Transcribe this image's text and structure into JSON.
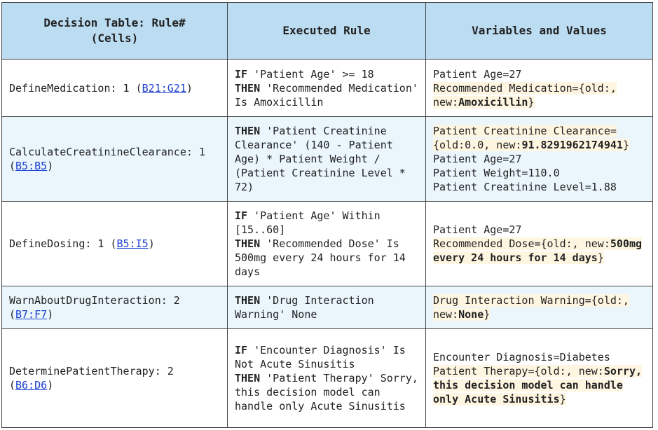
{
  "headers": {
    "col1": "Decision Table: Rule#\n(Cells)",
    "col2": "Executed Rule",
    "col3": "Variables and Values"
  },
  "rows": [
    {
      "table_prefix": "DefineMedication: 1 (",
      "cells": "B21:G21",
      "table_suffix": ")",
      "rule": [
        {
          "kw": "IF",
          "text": " 'Patient Age' >= 18"
        },
        {
          "kw": "THEN",
          "text": " 'Recommended Medication' Is Amoxicillin"
        }
      ],
      "vars": [
        {
          "text": "Patient Age=27"
        },
        {
          "pre": "Recommended Medication={old:, new:",
          "bold": "Amoxicillin",
          "post": "}"
        }
      ]
    },
    {
      "table_prefix": "CalculateCreatinineClearance: 1 (",
      "cells": "B5:B5",
      "table_suffix": ")",
      "rule": [
        {
          "kw": "THEN",
          "text": " 'Patient Creatinine Clearance' (140 - Patient Age) * Patient Weight / (Patient Creatinine Level * 72)"
        }
      ],
      "vars": [
        {
          "pre": "Patient Creatinine Clearance= {old:0.0, new:",
          "bold": "91.8291962174941",
          "post": "}"
        },
        {
          "text": "Patient Age=27"
        },
        {
          "text": "Patient Weight=110.0"
        },
        {
          "text": "Patient Creatinine Level=1.88"
        }
      ]
    },
    {
      "table_prefix": "DefineDosing: 1 (",
      "cells": "B5:I5",
      "table_suffix": ")",
      "rule": [
        {
          "kw": "IF",
          "text": " 'Patient Age' Within [15..60]"
        },
        {
          "kw": "THEN",
          "text": " 'Recommended Dose' Is 500mg every 24 hours for 14 days"
        }
      ],
      "vars": [
        {
          "text": "Patient Age=27"
        },
        {
          "pre": "Recommended Dose={old:, new:",
          "bold": "500mg every 24 hours for 14 days",
          "post": "}"
        }
      ]
    },
    {
      "table_prefix": "WarnAboutDrugInteraction: 2 (",
      "cells": "B7:F7",
      "table_suffix": ")",
      "rule": [
        {
          "kw": "THEN",
          "text": " 'Drug Interaction Warning' None"
        }
      ],
      "vars": [
        {
          "pre": "Drug Interaction Warning={old:, new:",
          "bold": "None",
          "post": "}"
        }
      ]
    },
    {
      "table_prefix": "DeterminePatientTherapy: 2 (",
      "cells": "B6:D6",
      "table_suffix": ")",
      "rule": [
        {
          "kw": "IF",
          "text": " 'Encounter Diagnosis' Is Not Acute Sinusitis"
        },
        {
          "kw": "THEN",
          "text": " 'Patient Therapy' Sorry, this decision model can handle only Acute Sinusitis"
        }
      ],
      "vars": [
        {
          "text": "Encounter Diagnosis=Diabetes"
        },
        {
          "pre": "Patient Therapy={old:, new:",
          "bold": "Sorry, this decision model can handle only Acute Sinusitis",
          "post": "}"
        }
      ]
    }
  ]
}
